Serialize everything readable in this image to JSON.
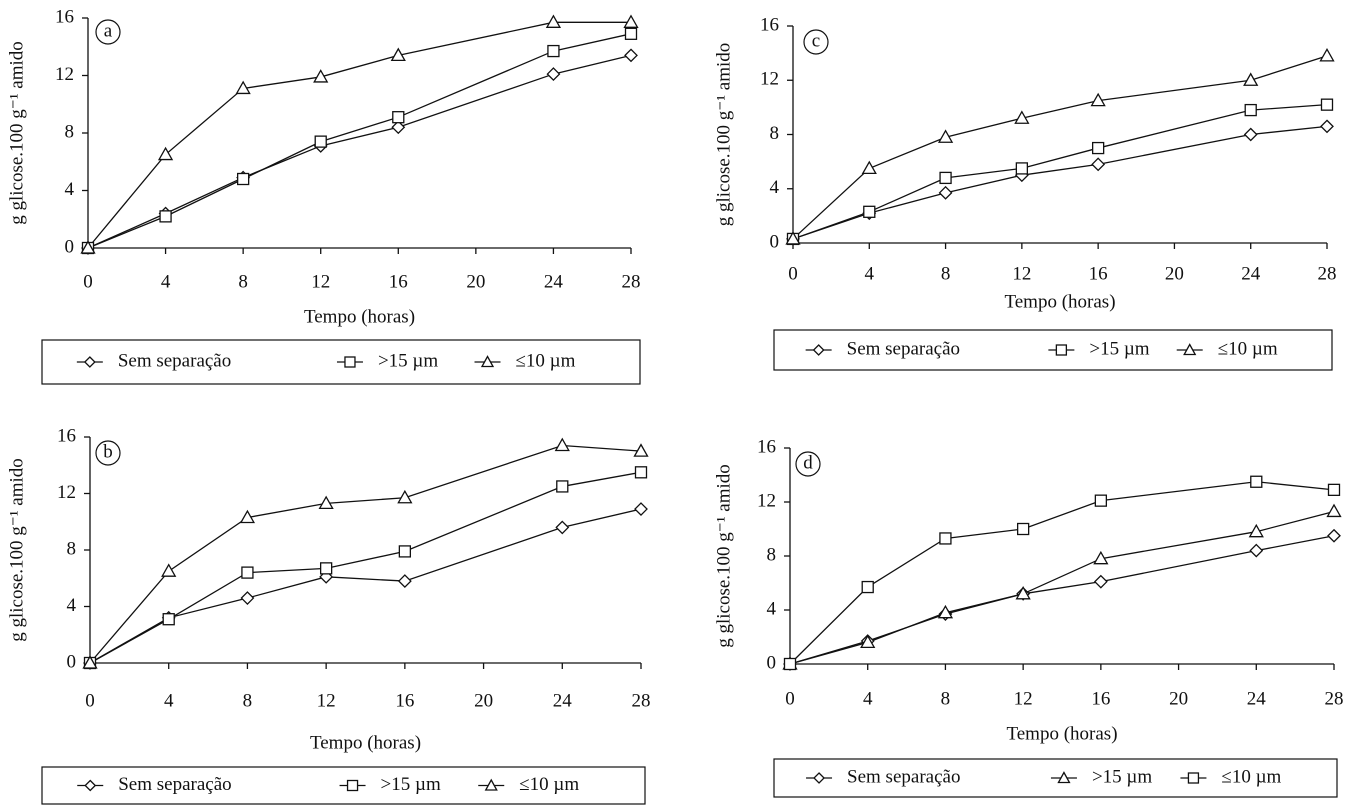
{
  "chart_data": [
    {
      "type": "line",
      "label": "a",
      "x_label": "Tempo (horas)",
      "y_label": "g glicose.100 g⁻¹ amido",
      "x": [
        0,
        4,
        8,
        12,
        16,
        24,
        28
      ],
      "xlim": [
        0,
        28
      ],
      "xticks": [
        0,
        4,
        8,
        12,
        16,
        20,
        24,
        28
      ],
      "ylim": [
        0,
        16
      ],
      "yticks": [
        0,
        4,
        8,
        12,
        16
      ],
      "series": [
        {
          "name": "Sem separação",
          "marker": "diamond",
          "color": "#111111",
          "values": [
            0,
            2.4,
            4.9,
            7.1,
            8.4,
            12.1,
            13.4
          ]
        },
        {
          "name": ">15 µm",
          "marker": "square",
          "color": "#111111",
          "values": [
            0,
            2.2,
            4.8,
            7.4,
            9.1,
            13.7,
            14.9
          ]
        },
        {
          "name": "≤10 µm",
          "marker": "triangle",
          "color": "#111111",
          "values": [
            0,
            6.5,
            11.1,
            11.9,
            13.4,
            15.7,
            15.7
          ]
        }
      ]
    },
    {
      "type": "line",
      "label": "c",
      "x_label": "Tempo (horas)",
      "y_label": "g glicose.100 g⁻¹ amido",
      "x": [
        0,
        4,
        8,
        12,
        16,
        24,
        28
      ],
      "xlim": [
        0,
        28
      ],
      "xticks": [
        0,
        4,
        8,
        12,
        16,
        20,
        24,
        28
      ],
      "ylim": [
        0,
        16
      ],
      "yticks": [
        0,
        4,
        8,
        12,
        16
      ],
      "series": [
        {
          "name": "Sem separação",
          "marker": "diamond",
          "color": "#111111",
          "values": [
            0.3,
            2.2,
            3.7,
            5.0,
            5.8,
            8.0,
            8.6
          ]
        },
        {
          "name": ">15 µm",
          "marker": "square",
          "color": "#111111",
          "values": [
            0.3,
            2.3,
            4.8,
            5.5,
            7.0,
            9.8,
            10.2
          ]
        },
        {
          "name": "≤10 µm",
          "marker": "triangle",
          "color": "#111111",
          "values": [
            0.3,
            5.5,
            7.8,
            9.2,
            10.5,
            12.0,
            13.8
          ]
        }
      ]
    },
    {
      "type": "line",
      "label": "b",
      "x_label": "Tempo (horas)",
      "y_label": "g glicose.100 g⁻¹ amido",
      "x": [
        0,
        4,
        8,
        12,
        16,
        24,
        28
      ],
      "xlim": [
        0,
        28
      ],
      "xticks": [
        0,
        4,
        8,
        12,
        16,
        20,
        24,
        28
      ],
      "ylim": [
        0,
        16
      ],
      "yticks": [
        0,
        4,
        8,
        12,
        16
      ],
      "series": [
        {
          "name": "Sem separação",
          "marker": "diamond",
          "color": "#111111",
          "values": [
            0,
            3.2,
            4.6,
            6.1,
            5.8,
            9.6,
            10.9
          ]
        },
        {
          "name": ">15 µm",
          "marker": "square",
          "color": "#111111",
          "values": [
            0,
            3.1,
            6.4,
            6.7,
            7.9,
            12.5,
            13.5
          ]
        },
        {
          "name": "≤10 µm",
          "marker": "triangle",
          "color": "#111111",
          "values": [
            0,
            6.5,
            10.3,
            11.3,
            11.7,
            15.4,
            15.0
          ]
        }
      ]
    },
    {
      "type": "line",
      "label": "d",
      "x_label": "Tempo (horas)",
      "y_label": "g glicose.100 g⁻¹ amido",
      "x": [
        0,
        4,
        8,
        12,
        16,
        24,
        28
      ],
      "xlim": [
        0,
        28
      ],
      "xticks": [
        0,
        4,
        8,
        12,
        16,
        20,
        24,
        28
      ],
      "ylim": [
        0,
        16
      ],
      "yticks": [
        0,
        4,
        8,
        12,
        16
      ],
      "series": [
        {
          "name": "Sem separação",
          "marker": "diamond",
          "color": "#111111",
          "values": [
            0,
            1.7,
            3.7,
            5.2,
            6.1,
            8.4,
            9.5
          ]
        },
        {
          "name": ">15 µm",
          "marker": "triangle",
          "color": "#111111",
          "values": [
            0,
            1.6,
            3.8,
            5.2,
            7.8,
            9.8,
            11.3
          ]
        },
        {
          "name": "≤10 µm",
          "marker": "square",
          "color": "#111111",
          "values": [
            0,
            5.7,
            9.3,
            10.0,
            12.1,
            13.5,
            12.9
          ]
        }
      ]
    }
  ]
}
